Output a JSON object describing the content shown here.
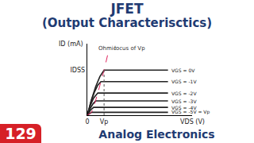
{
  "chart_data": {
    "type": "line",
    "title": "JFET",
    "subtitle": "(Output Characterisctics)",
    "xlabel": "VDS (V)",
    "ylabel": "ID (mA)",
    "xlim": [
      0,
      10
    ],
    "ylim": [
      0,
      10
    ],
    "xticks": [
      {
        "value": 0,
        "label": "0"
      },
      {
        "value": 1.6,
        "label": "Vp"
      }
    ],
    "yticks": [
      {
        "value": 6.3,
        "label": "IDSS"
      }
    ],
    "grid": false,
    "series": [
      {
        "name": "VGS = 0V",
        "color": "#222222",
        "x": [
          0,
          0.4,
          0.8,
          1.2,
          1.6,
          7.7
        ],
        "values": [
          0,
          2.2,
          4.0,
          5.4,
          6.3,
          6.3
        ]
      },
      {
        "name": "VGS = -1V",
        "color": "#222222",
        "x": [
          0,
          0.35,
          0.7,
          1.0,
          1.3,
          7.7
        ],
        "values": [
          0,
          1.9,
          3.3,
          4.2,
          4.7,
          4.7
        ]
      },
      {
        "name": "VGS = -2V",
        "color": "#222222",
        "x": [
          0,
          0.3,
          0.6,
          1.0,
          7.7
        ],
        "values": [
          0,
          1.4,
          2.4,
          3.1,
          3.1
        ]
      },
      {
        "name": "VGS = -3V",
        "color": "#222222",
        "x": [
          0,
          0.3,
          0.55,
          0.8,
          7.7
        ],
        "values": [
          0,
          1.0,
          1.6,
          2.0,
          2.0
        ]
      },
      {
        "name": "VGS = -4V",
        "color": "#222222",
        "x": [
          0,
          0.3,
          0.6,
          7.7
        ],
        "values": [
          0,
          0.7,
          1.1,
          1.1
        ]
      },
      {
        "name": "VGS = -5V = Vp",
        "color": "#222222",
        "x": [
          0,
          0.4,
          7.7
        ],
        "values": [
          0,
          0.4,
          0.4
        ]
      },
      {
        "color": "#e0245e",
        "line_style": "dashed",
        "x": [
          0,
          0.4,
          0.6,
          0.8,
          1.0,
          1.3,
          1.6,
          2.0
        ],
        "values": [
          0,
          0.4,
          1.1,
          2.0,
          3.1,
          4.7,
          6.3,
          8.8
        ]
      },
      {
        "color": "#555555",
        "line_style": "dotted",
        "x": [
          1.6,
          1.6
        ],
        "values": [
          0,
          6.3
        ]
      }
    ],
    "annotations": [
      {
        "text": "Ohmic",
        "x": 0.9,
        "y": 9.3
      },
      {
        "text": "locus of Vp",
        "x": 2.4,
        "y": 9.3
      }
    ]
  },
  "footer": {
    "number": "129",
    "subject": "Analog Electronics"
  }
}
